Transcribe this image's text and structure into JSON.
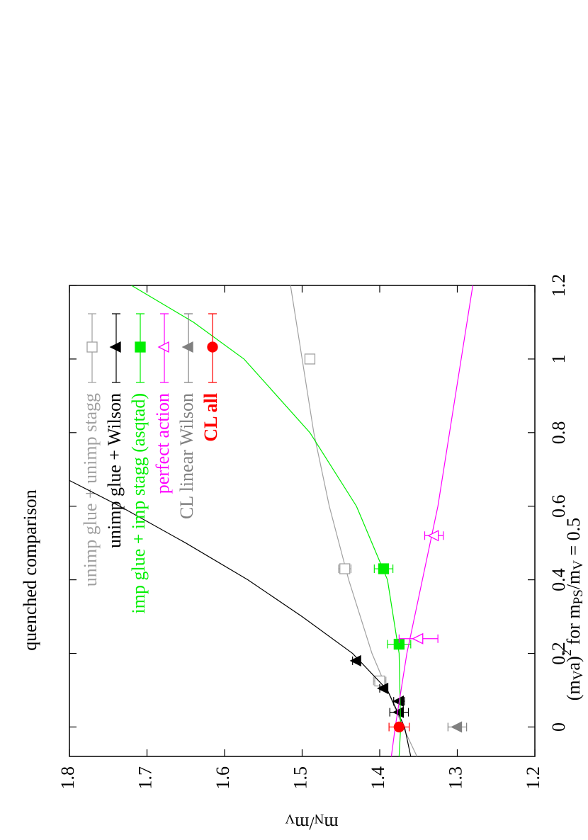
{
  "chart_data": {
    "type": "scatter",
    "title": "quenched comparison",
    "xlabel": [
      "(m",
      "V",
      "a)",
      "2",
      " for m",
      "PS",
      "/m",
      "V",
      " = 0.5"
    ],
    "ylabel": [
      "m",
      "N",
      "/m",
      "V"
    ],
    "xlim": [
      -0.08,
      1.2
    ],
    "xticks": [
      0,
      0.2,
      0.4,
      0.6,
      0.8,
      1,
      1.2
    ],
    "ylim": [
      1.2,
      1.8
    ],
    "yticks": [
      1.2,
      1.3,
      1.4,
      1.5,
      1.6,
      1.7,
      1.8
    ],
    "rotation": -90,
    "legend": "upper left",
    "series": [
      {
        "name": "unimp glue + unimp stagg",
        "color": "#a0a0a0",
        "marker": "open-square",
        "x": [
          0.125,
          0.43,
          1.0
        ],
        "values": [
          1.4,
          1.445,
          1.49
        ],
        "errors": [
          0.008,
          0.008,
          0.005
        ],
        "fit": {
          "x": [
            -0.08,
            0,
            0.2,
            0.4,
            0.6,
            0.8,
            1.0,
            1.2
          ],
          "values": [
            1.352,
            1.37,
            1.41,
            1.44,
            1.465,
            1.485,
            1.5,
            1.515
          ]
        }
      },
      {
        "name": "unimp glue + Wilson",
        "color": "#000000",
        "marker": "triangle",
        "x": [
          0.18,
          0.105,
          0.07,
          0.04
        ],
        "values": [
          1.43,
          1.395,
          1.375,
          1.375
        ],
        "errors": [
          0.005,
          0.005,
          0.007,
          0.012
        ],
        "fit": {
          "x": [
            -0.08,
            0,
            0.1,
            0.2,
            0.3,
            0.4,
            0.5,
            0.6,
            0.67
          ],
          "values": [
            1.36,
            1.368,
            1.39,
            1.435,
            1.5,
            1.57,
            1.65,
            1.735,
            1.8
          ]
        }
      },
      {
        "name": "imp glue + imp stagg (asqtad)",
        "color": "#00ee00",
        "marker": "square",
        "x": [
          0.225,
          0.43
        ],
        "values": [
          1.375,
          1.395
        ],
        "errors": [
          0.015,
          0.012
        ],
        "fit": {
          "x": [
            -0.08,
            0,
            0.2,
            0.4,
            0.6,
            0.8,
            1.0,
            1.1,
            1.2
          ],
          "values": [
            1.375,
            1.373,
            1.375,
            1.39,
            1.43,
            1.49,
            1.575,
            1.64,
            1.72
          ]
        }
      },
      {
        "name": "perfect action",
        "color": "#ff00ff",
        "marker": "open-triangle",
        "x": [
          0.24,
          0.52
        ],
        "values": [
          1.35,
          1.33
        ],
        "errors": [
          0.025,
          0.012
        ],
        "fit": {
          "x": [
            -0.08,
            0,
            0.2,
            0.4,
            0.6,
            0.8,
            1.0,
            1.2
          ],
          "values": [
            1.385,
            1.38,
            1.365,
            1.345,
            1.325,
            1.31,
            1.295,
            1.28
          ]
        }
      },
      {
        "name": "CL linear Wilson",
        "color": "#808080",
        "marker": "triangle",
        "x": [
          0
        ],
        "values": [
          1.3
        ],
        "errors": [
          0.012
        ]
      },
      {
        "name": "CL all",
        "color": "#ff0000",
        "marker": "circle",
        "x": [
          0
        ],
        "values": [
          1.375
        ],
        "errors": [
          0.013
        ]
      }
    ]
  }
}
